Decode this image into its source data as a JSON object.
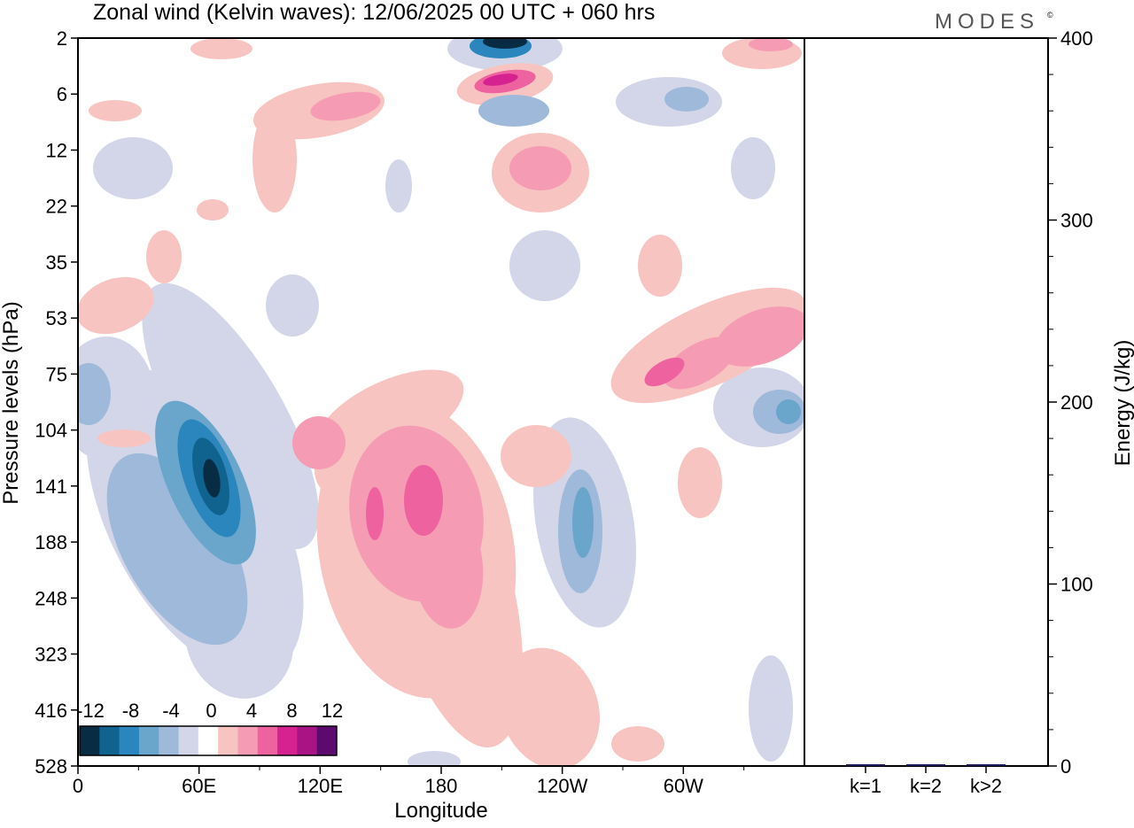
{
  "title": "Zonal wind (Kelvin waves):  12/06/2025  00 UTC  + 060 hrs",
  "brand": "MODES",
  "brand_mark": "©",
  "chart_data": [
    {
      "type": "heatmap",
      "description_of_content": "filled contours",
      "xlabel": "Longitude",
      "ylabel": "Pressure levels (hPa)",
      "x_ticks": [
        "0",
        "60E",
        "120E",
        "180",
        "120W",
        "60W"
      ],
      "y_ticks": [
        "2",
        "6",
        "12",
        "22",
        "35",
        "53",
        "75",
        "104",
        "141",
        "188",
        "248",
        "323",
        "416",
        "528"
      ],
      "colorbar": {
        "labels": [
          "-12",
          "-8",
          "-4",
          "0",
          "4",
          "8",
          "12"
        ],
        "levels": [
          -14,
          -12,
          -10,
          -8,
          -6,
          -4,
          -2,
          2,
          4,
          6,
          8,
          10,
          12,
          14
        ],
        "colors": [
          "#082c44",
          "#10628f",
          "#2a86bd",
          "#6aa5cc",
          "#9fb9da",
          "#d2d6e8",
          "#ffffff",
          "#f7c4c1",
          "#f59cb4",
          "#ef62a0",
          "#d62190",
          "#a81483",
          "#5d0a6f"
        ]
      },
      "features": [
        {
          "name": "blue-max-upper",
          "value": -12,
          "lon": 205,
          "p": 2
        },
        {
          "name": "pink-upper",
          "value": 8,
          "lon": 210,
          "p": 5
        },
        {
          "name": "pink-mid-upper",
          "value": 6,
          "lon": 218,
          "p": 15
        },
        {
          "name": "blue-core-lower",
          "value": -14,
          "lon": 67,
          "p": 145
        },
        {
          "name": "pink-core-lower",
          "value": 8,
          "lon": 168,
          "p": 145
        },
        {
          "name": "pink-core-lower-2",
          "value": 8,
          "lon": 148,
          "p": 150
        },
        {
          "name": "blue-lower-east",
          "value": -8,
          "lon": 250,
          "p": 175
        },
        {
          "name": "pink-band-east",
          "value": 6,
          "lon": 320,
          "p": 80
        },
        {
          "name": "blue-east-edge",
          "value": -8,
          "lon": 355,
          "p": 95
        }
      ]
    },
    {
      "type": "bar",
      "categories": [
        "k=1",
        "k=2",
        "k>2"
      ],
      "values": [
        0.8,
        0.5,
        0.5
      ],
      "ylabel": "Energy (J/kg)",
      "ylim": [
        0,
        400
      ],
      "y_ticks": [
        "0",
        "100",
        "200",
        "300",
        "400"
      ],
      "bar_color": "#1e1e5a"
    }
  ]
}
